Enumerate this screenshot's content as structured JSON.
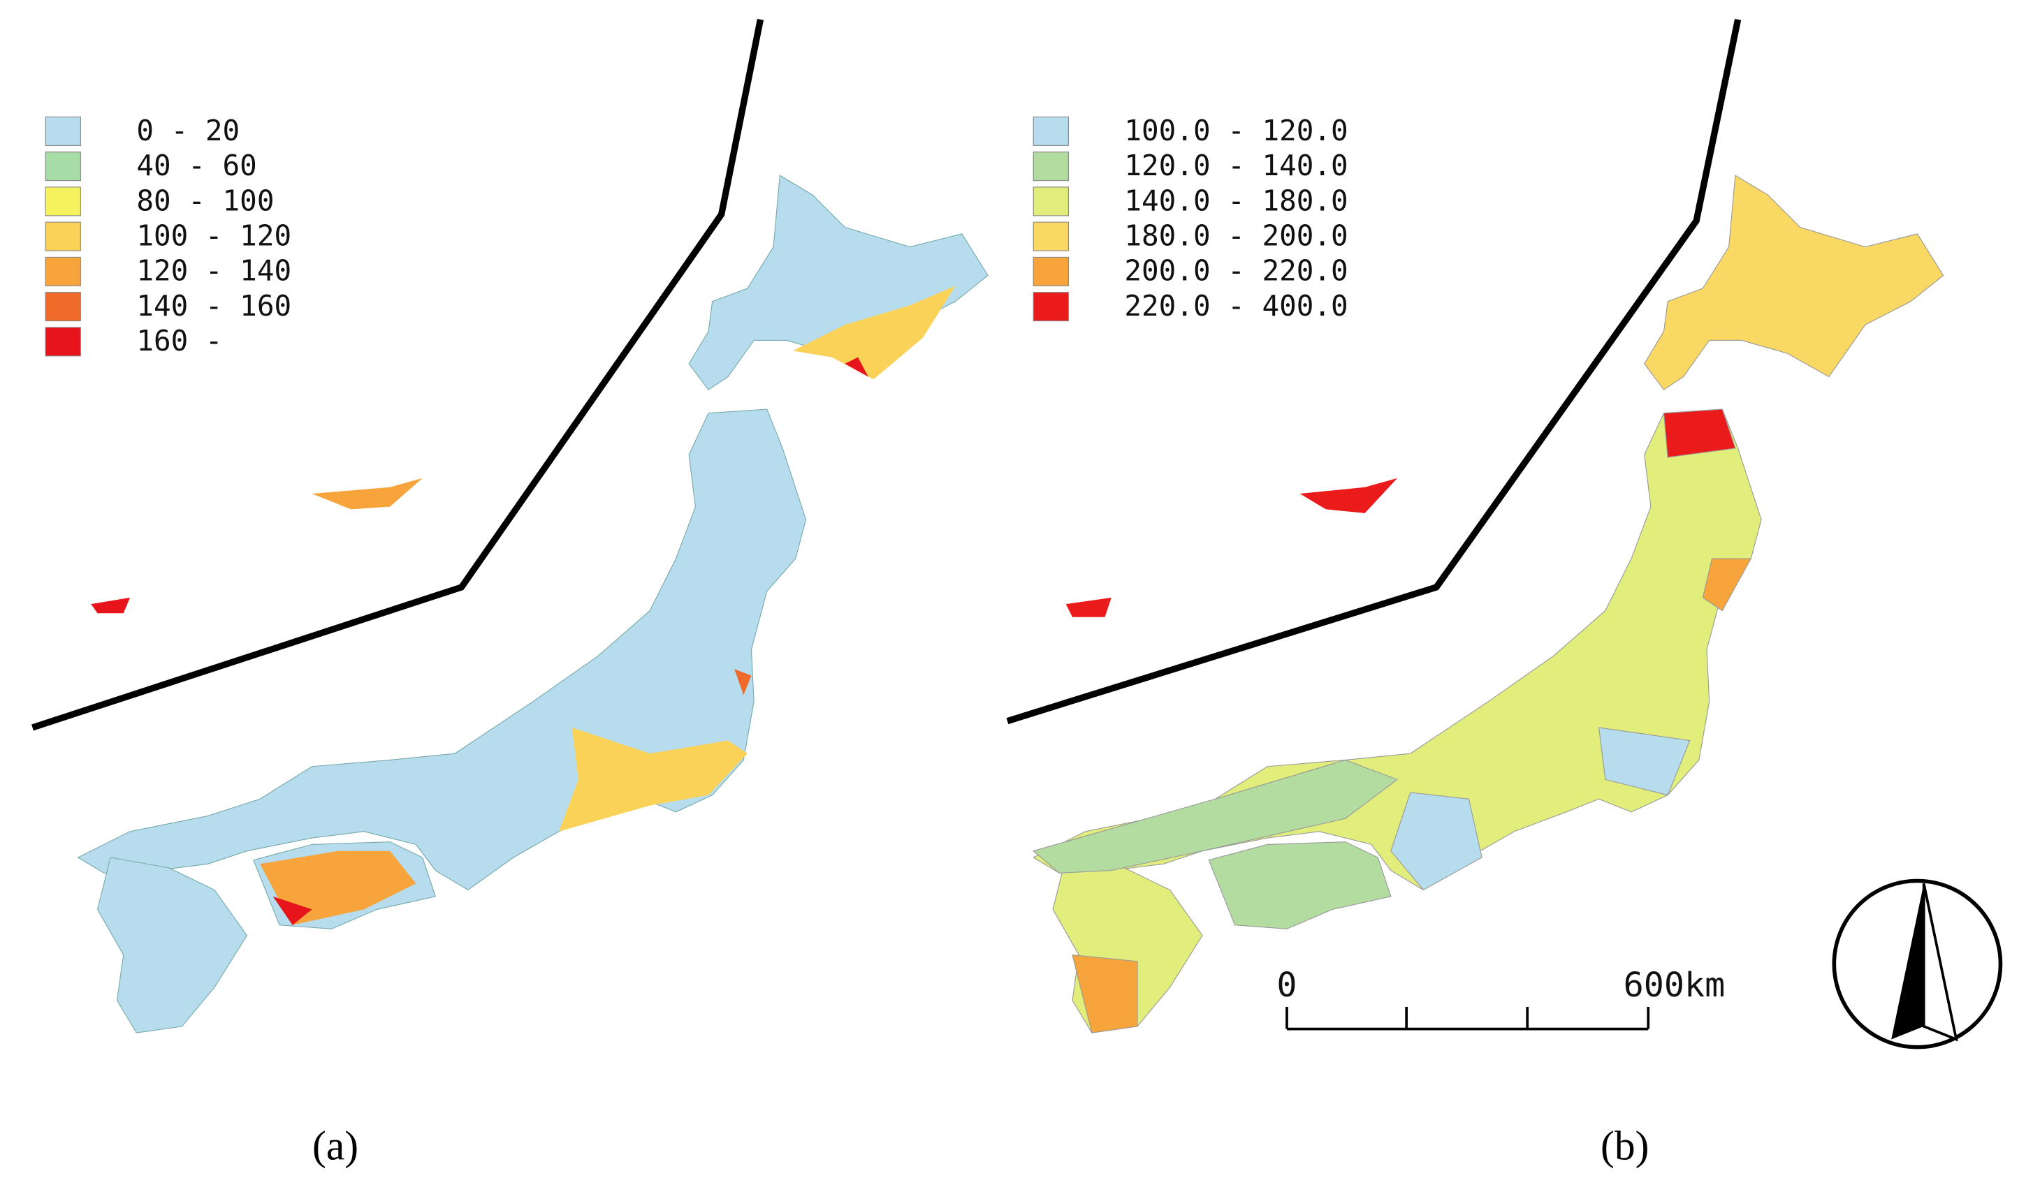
{
  "panels": [
    {
      "caption": "(a)",
      "legend": [
        {
          "label": "0 - 20",
          "color": "#b6dced"
        },
        {
          "label": "40 - 60",
          "color": "#a8dca6"
        },
        {
          "label": "80 - 100",
          "color": "#f5f25e"
        },
        {
          "label": "100 - 120",
          "color": "#fbd258"
        },
        {
          "label": "120 - 140",
          "color": "#f7a43c"
        },
        {
          "label": "140 - 160",
          "color": "#f06a2a"
        },
        {
          "label": "160 -",
          "color": "#e8141b"
        }
      ]
    },
    {
      "caption": "(b)",
      "legend": [
        {
          "label": "100.0 - 120.0",
          "color": "#b6dced"
        },
        {
          "label": "120.0 - 140.0",
          "color": "#b3dca0"
        },
        {
          "label": "140.0 - 180.0",
          "color": "#e2ee7c"
        },
        {
          "label": "180.0 - 200.0",
          "color": "#fad864"
        },
        {
          "label": "200.0 - 220.0",
          "color": "#f7a43c"
        },
        {
          "label": "220.0 - 400.0",
          "color": "#ec1b1b"
        }
      ]
    }
  ],
  "scale_bar": {
    "start": "0",
    "end": "600km"
  }
}
